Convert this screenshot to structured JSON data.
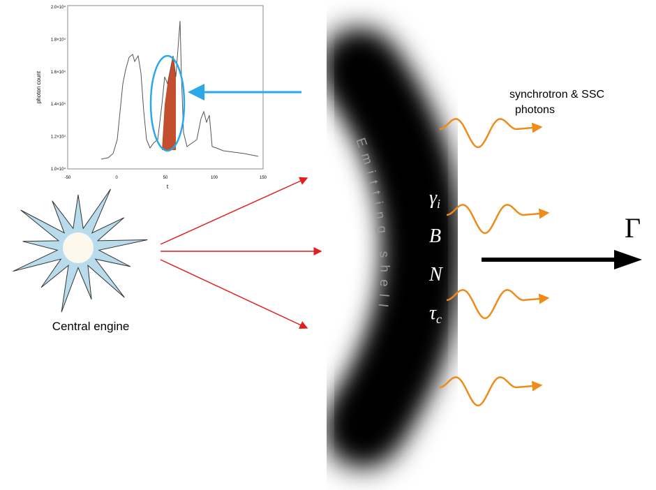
{
  "inset": {
    "y_label": "photon count",
    "x_label": "t",
    "x_ticks": [
      "-50",
      "0",
      "50",
      "100",
      "150"
    ],
    "y_ticks": [
      "2.0×10⁴",
      "1.8×10⁴",
      "1.6×10⁴",
      "1.4×10⁴",
      "1.2×10⁴",
      "1.0×10⁴"
    ]
  },
  "labels": {
    "photons": [
      "synchrotron & SSC",
      "photons"
    ],
    "central_engine": "Central engine",
    "emitting_shell": "Emitting shell",
    "parameters": [
      {
        "symbol": "γ",
        "subscript": "i"
      },
      {
        "symbol": "B"
      },
      {
        "symbol": "N"
      },
      {
        "symbol": "τ",
        "subscript": "c"
      }
    ],
    "lorentz_factor": "Γ"
  }
}
